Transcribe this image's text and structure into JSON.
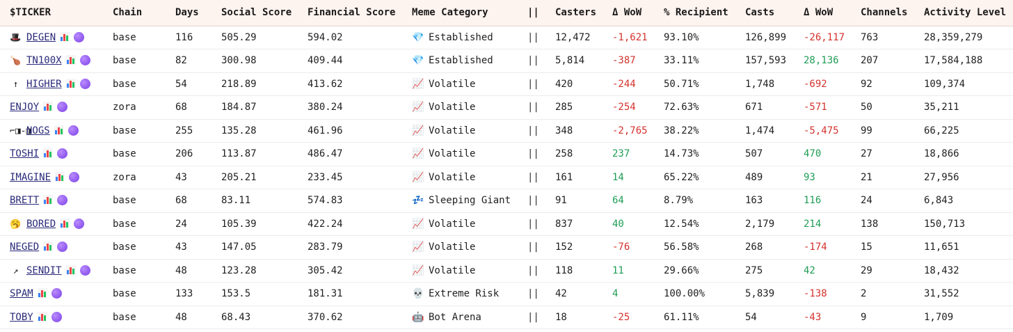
{
  "headers": [
    "$TICKER",
    "Chain",
    "Days",
    "Social Score",
    "Financial Score",
    "Meme Category",
    "||",
    "Casters",
    "Δ WoW",
    "% Recipient",
    "Casts",
    "Δ WoW",
    "Channels",
    "Activity Level"
  ],
  "rows": [
    {
      "icon": "🎩",
      "icon_name": "top-hat-icon",
      "ticker": "DEGEN",
      "chain": "base",
      "days": "116",
      "social": "505.29",
      "financial": "594.02",
      "cat_icon": "💎",
      "cat_icon_name": "gem-icon",
      "category": "Established",
      "sep": "||",
      "casters": "12,472",
      "casters_wow": "-1,621",
      "casters_wow_sign": "neg",
      "recipient": "93.10%",
      "casts": "126,899",
      "casts_wow": "-26,117",
      "casts_wow_sign": "neg",
      "channels": "763",
      "activity": "28,359,279"
    },
    {
      "icon": "🍗",
      "icon_name": "drumstick-icon",
      "ticker": "TN100X",
      "chain": "base",
      "days": "82",
      "social": "300.98",
      "financial": "409.44",
      "cat_icon": "💎",
      "cat_icon_name": "gem-icon",
      "category": "Established",
      "sep": "||",
      "casters": "5,814",
      "casters_wow": "-387",
      "casters_wow_sign": "neg",
      "recipient": "33.11%",
      "casts": "157,593",
      "casts_wow": "28,136",
      "casts_wow_sign": "pos",
      "channels": "207",
      "activity": "17,584,188"
    },
    {
      "icon": "↑",
      "icon_name": "up-arrow-icon",
      "ticker": "HIGHER",
      "chain": "base",
      "days": "54",
      "social": "218.89",
      "financial": "413.62",
      "cat_icon": "📈",
      "cat_icon_name": "chart-up-icon",
      "category": "Volatile",
      "sep": "||",
      "casters": "420",
      "casters_wow": "-244",
      "casters_wow_sign": "neg",
      "recipient": "50.71%",
      "casts": "1,748",
      "casts_wow": "-692",
      "casts_wow_sign": "neg",
      "channels": "92",
      "activity": "109,374"
    },
    {
      "icon": "",
      "icon_name": "",
      "ticker": "ENJOY",
      "chain": "zora",
      "days": "68",
      "social": "184.87",
      "financial": "380.24",
      "cat_icon": "📈",
      "cat_icon_name": "chart-up-icon",
      "category": "Volatile",
      "sep": "||",
      "casters": "285",
      "casters_wow": "-254",
      "casters_wow_sign": "neg",
      "recipient": "72.63%",
      "casts": "671",
      "casts_wow": "-571",
      "casts_wow_sign": "neg",
      "channels": "50",
      "activity": "35,211"
    },
    {
      "icon": "⌐◨-◨",
      "icon_name": "noggles-icon",
      "ticker": "NOGS",
      "chain": "base",
      "days": "255",
      "social": "135.28",
      "financial": "461.96",
      "cat_icon": "📈",
      "cat_icon_name": "chart-up-icon",
      "category": "Volatile",
      "sep": "||",
      "casters": "348",
      "casters_wow": "-2,765",
      "casters_wow_sign": "neg",
      "recipient": "38.22%",
      "casts": "1,474",
      "casts_wow": "-5,475",
      "casts_wow_sign": "neg",
      "channels": "99",
      "activity": "66,225"
    },
    {
      "icon": "",
      "icon_name": "",
      "ticker": "TOSHI",
      "chain": "base",
      "days": "206",
      "social": "113.87",
      "financial": "486.47",
      "cat_icon": "📈",
      "cat_icon_name": "chart-up-icon",
      "category": "Volatile",
      "sep": "||",
      "casters": "258",
      "casters_wow": "237",
      "casters_wow_sign": "pos",
      "recipient": "14.73%",
      "casts": "507",
      "casts_wow": "470",
      "casts_wow_sign": "pos",
      "channels": "27",
      "activity": "18,866"
    },
    {
      "icon": "",
      "icon_name": "",
      "ticker": "IMAGINE",
      "chain": "zora",
      "days": "43",
      "social": "205.21",
      "financial": "233.45",
      "cat_icon": "📈",
      "cat_icon_name": "chart-up-icon",
      "category": "Volatile",
      "sep": "||",
      "casters": "161",
      "casters_wow": "14",
      "casters_wow_sign": "pos",
      "recipient": "65.22%",
      "casts": "489",
      "casts_wow": "93",
      "casts_wow_sign": "pos",
      "channels": "21",
      "activity": "27,956"
    },
    {
      "icon": "",
      "icon_name": "",
      "ticker": "BRETT",
      "chain": "base",
      "days": "68",
      "social": "83.11",
      "financial": "574.83",
      "cat_icon": "💤",
      "cat_icon_name": "zzz-icon",
      "category": "Sleeping Giant",
      "sep": "||",
      "casters": "91",
      "casters_wow": "64",
      "casters_wow_sign": "pos",
      "recipient": "8.79%",
      "casts": "163",
      "casts_wow": "116",
      "casts_wow_sign": "pos",
      "channels": "24",
      "activity": "6,843"
    },
    {
      "icon": "🥱",
      "icon_name": "yawning-face-icon",
      "ticker": "BORED",
      "chain": "base",
      "days": "24",
      "social": "105.39",
      "financial": "422.24",
      "cat_icon": "📈",
      "cat_icon_name": "chart-up-icon",
      "category": "Volatile",
      "sep": "||",
      "casters": "837",
      "casters_wow": "40",
      "casters_wow_sign": "pos",
      "recipient": "12.54%",
      "casts": "2,179",
      "casts_wow": "214",
      "casts_wow_sign": "pos",
      "channels": "138",
      "activity": "150,713"
    },
    {
      "icon": "",
      "icon_name": "",
      "ticker": "NEGED",
      "chain": "base",
      "days": "43",
      "social": "147.05",
      "financial": "283.79",
      "cat_icon": "📈",
      "cat_icon_name": "chart-up-icon",
      "category": "Volatile",
      "sep": "||",
      "casters": "152",
      "casters_wow": "-76",
      "casters_wow_sign": "neg",
      "recipient": "56.58%",
      "casts": "268",
      "casts_wow": "-174",
      "casts_wow_sign": "neg",
      "channels": "15",
      "activity": "11,651"
    },
    {
      "icon": "↗",
      "icon_name": "up-right-arrow-icon",
      "ticker": "SENDIT",
      "chain": "base",
      "days": "48",
      "social": "123.28",
      "financial": "305.42",
      "cat_icon": "📈",
      "cat_icon_name": "chart-up-icon",
      "category": "Volatile",
      "sep": "||",
      "casters": "118",
      "casters_wow": "11",
      "casters_wow_sign": "pos",
      "recipient": "29.66%",
      "casts": "275",
      "casts_wow": "42",
      "casts_wow_sign": "pos",
      "channels": "29",
      "activity": "18,432"
    },
    {
      "icon": "",
      "icon_name": "",
      "ticker": "SPAM",
      "chain": "base",
      "days": "133",
      "social": "153.5",
      "financial": "181.31",
      "cat_icon": "💀",
      "cat_icon_name": "skull-icon",
      "category": "Extreme Risk",
      "sep": "||",
      "casters": "42",
      "casters_wow": "4",
      "casters_wow_sign": "pos",
      "recipient": "100.00%",
      "casts": "5,839",
      "casts_wow": "-138",
      "casts_wow_sign": "neg",
      "channels": "2",
      "activity": "31,552"
    },
    {
      "icon": "",
      "icon_name": "",
      "ticker": "TOBY",
      "chain": "base",
      "days": "48",
      "social": "68.43",
      "financial": "370.62",
      "cat_icon": "🤖",
      "cat_icon_name": "robot-icon",
      "category": "Bot Arena",
      "sep": "||",
      "casters": "18",
      "casters_wow": "-25",
      "casters_wow_sign": "neg",
      "recipient": "61.11%",
      "casts": "54",
      "casts_wow": "-43",
      "casts_wow_sign": "neg",
      "channels": "9",
      "activity": "1,709"
    }
  ],
  "colors": {
    "header_bg": "#fdf3ef",
    "negative": "#d4322c",
    "positive": "#1f9d55",
    "link": "#2a2a7a",
    "bubble": "#8a4df0"
  }
}
